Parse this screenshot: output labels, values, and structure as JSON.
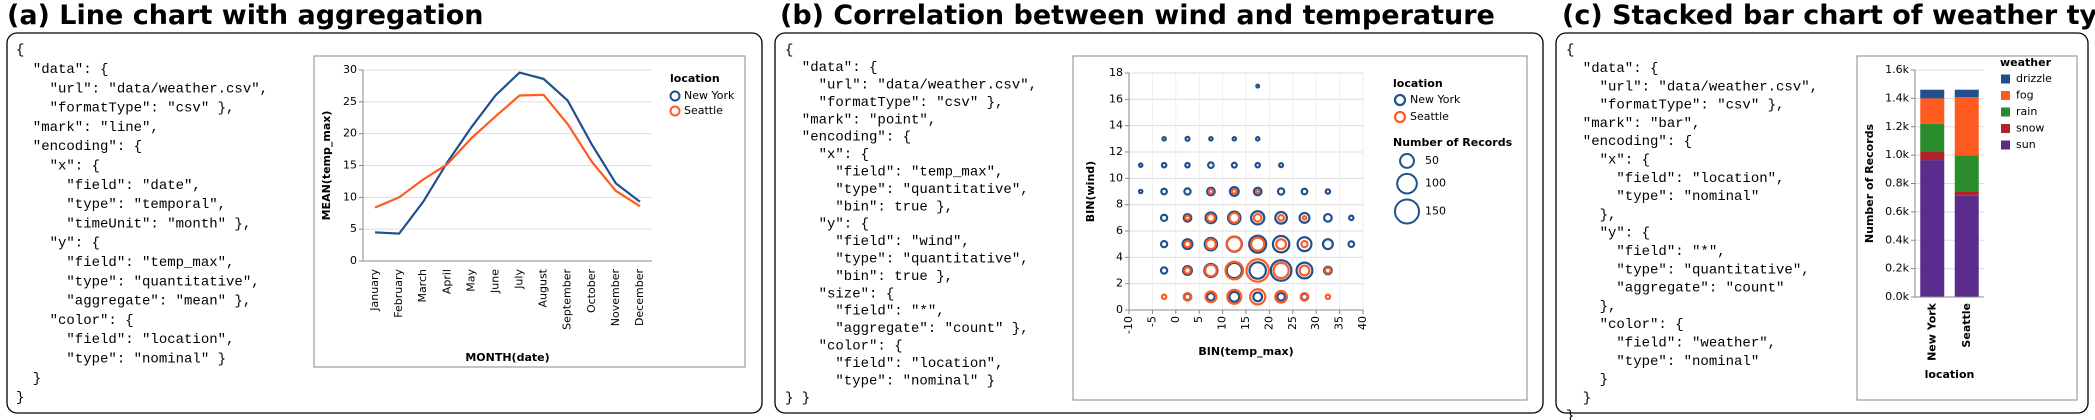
{
  "panels": [
    {
      "title": "(a) Line chart with aggregation",
      "code": [
        "{",
        "  \"data\": {",
        "    \"url\": \"data/weather.csv\",",
        "    \"formatType\": \"csv\" },",
        "  \"mark\": \"line\",",
        "  \"encoding\": {",
        "    \"x\": {",
        "      \"field\": \"date\",",
        "      \"type\": \"temporal\",",
        "      \"timeUnit\": \"month\" },",
        "    \"y\": {",
        "      \"field\": \"temp_max\",",
        "      \"type\": \"quantitative\",",
        "      \"aggregate\": \"mean\" },",
        "    \"color\": {",
        "      \"field\": \"location\",",
        "      \"type\": \"nominal\" }",
        "  }",
        "}"
      ]
    },
    {
      "title": "(b) Correlation between wind and temperature",
      "code": [
        "{",
        "  \"data\": {",
        "    \"url\": \"data/weather.csv\",",
        "    \"formatType\": \"csv\" },",
        "  \"mark\": \"point\",",
        "  \"encoding\": {",
        "    \"x\": {",
        "      \"field\": \"temp_max\",",
        "      \"type\": \"quantitative\",",
        "      \"bin\": true },",
        "    \"y\": {",
        "      \"field\": \"wind\",",
        "      \"type\": \"quantitative\",",
        "      \"bin\": true },",
        "    \"size\": {",
        "      \"field\": \"*\",",
        "      \"aggregate\": \"count\" },",
        "    \"color\": {",
        "      \"field\": \"location\",",
        "      \"type\": \"nominal\" }",
        "} }"
      ]
    },
    {
      "title": "(c) Stacked bar chart of weather types",
      "code": [
        "{",
        "  \"data\": {",
        "    \"url\": \"data/weather.csv\",",
        "    \"formatType\": \"csv\" },",
        "  \"mark\": \"bar\",",
        "  \"encoding\": {",
        "    \"x\": {",
        "      \"field\": \"location\",",
        "      \"type\": \"nominal\"",
        "    },",
        "    \"y\": {",
        "      \"field\": \"*\",",
        "      \"type\": \"quantitative\",",
        "      \"aggregate\": \"count\"",
        "    },",
        "    \"color\": {",
        "      \"field\": \"weather\",",
        "      \"type\": \"nominal\"",
        "    }",
        "  }",
        "}"
      ]
    }
  ],
  "chart_data": [
    {
      "type": "line",
      "x_label": "MONTH(date)",
      "y_label": "MEAN(temp_max)",
      "categories": [
        "January",
        "February",
        "March",
        "April",
        "May",
        "June",
        "July",
        "August",
        "September",
        "October",
        "November",
        "December"
      ],
      "ylim": [
        0,
        30
      ],
      "yticks": [
        0,
        5,
        10,
        15,
        20,
        25,
        30
      ],
      "grid": true,
      "legend_title": "location",
      "series": [
        {
          "name": "New York",
          "color": "#21508f",
          "values": [
            4.5,
            4.3,
            9.3,
            15.5,
            21,
            26,
            29.6,
            28.6,
            25.2,
            18.3,
            12.2,
            9.3
          ]
        },
        {
          "name": "Seattle",
          "color": "#ff5a1f",
          "values": [
            8.4,
            10,
            12.8,
            15.2,
            19.3,
            22.7,
            26,
            26.1,
            21.5,
            15.6,
            11,
            8.6
          ]
        }
      ]
    },
    {
      "type": "scatter",
      "x_label": "BIN(temp_max)",
      "y_label": "BIN(wind)",
      "xlim": [
        -10,
        40
      ],
      "xticks": [
        -10,
        -5,
        0,
        5,
        10,
        15,
        20,
        25,
        30,
        35,
        40
      ],
      "ylim": [
        0,
        18
      ],
      "yticks": [
        0,
        2,
        4,
        6,
        8,
        10,
        12,
        14,
        16,
        18
      ],
      "grid": true,
      "legend_title": "location",
      "size_legend_title": "Number of Records",
      "size_legend": [
        50,
        100,
        150
      ],
      "series": [
        {
          "name": "New York",
          "color": "#21508f",
          "x": [
            2.5,
            7.5,
            12.5,
            17.5,
            22.5,
            27.5,
            -2.5,
            2.5,
            7.5,
            12.5,
            17.5,
            22.5,
            27.5,
            32.5,
            -2.5,
            2.5,
            7.5,
            12.5,
            17.5,
            22.5,
            27.5,
            32.5,
            37.5,
            -2.5,
            2.5,
            7.5,
            12.5,
            17.5,
            22.5,
            27.5,
            32.5,
            37.5,
            -7.5,
            -2.5,
            2.5,
            7.5,
            12.5,
            17.5,
            22.5,
            27.5,
            32.5,
            -7.5,
            -2.5,
            2.5,
            7.5,
            12.5,
            17.5,
            22.5,
            -2.5,
            2.5,
            7.5,
            12.5,
            17.5,
            17.5
          ],
          "y": [
            1,
            1,
            1,
            1,
            1,
            1,
            3,
            3,
            3,
            3,
            3,
            3,
            3,
            3,
            5,
            5,
            5,
            5,
            5,
            5,
            5,
            5,
            5,
            7,
            7,
            7,
            7,
            7,
            7,
            7,
            7,
            7,
            9,
            9,
            9,
            9,
            9,
            9,
            9,
            9,
            9,
            11,
            11,
            11,
            11,
            11,
            11,
            11,
            13,
            13,
            13,
            13,
            13,
            17
          ],
          "size": [
            10,
            15,
            25,
            20,
            15,
            10,
            10,
            20,
            45,
            60,
            70,
            110,
            65,
            15,
            10,
            25,
            40,
            60,
            75,
            70,
            50,
            25,
            8,
            10,
            15,
            30,
            40,
            45,
            35,
            25,
            15,
            5,
            3,
            8,
            10,
            15,
            20,
            15,
            10,
            8,
            5,
            3,
            5,
            5,
            8,
            6,
            5,
            4,
            3,
            4,
            3,
            3,
            3,
            2
          ]
        },
        {
          "name": "Seattle",
          "color": "#ff5a1f",
          "x": [
            -2.5,
            2.5,
            7.5,
            12.5,
            17.5,
            22.5,
            27.5,
            32.5,
            2.5,
            7.5,
            12.5,
            17.5,
            22.5,
            27.5,
            32.5,
            2.5,
            7.5,
            12.5,
            17.5,
            22.5,
            27.5,
            2.5,
            7.5,
            12.5,
            17.5,
            22.5,
            27.5,
            7.5,
            12.5,
            17.5
          ],
          "y": [
            1,
            1,
            1,
            1,
            1,
            1,
            1,
            1,
            3,
            3,
            3,
            3,
            3,
            3,
            3,
            5,
            5,
            5,
            5,
            5,
            5,
            7,
            7,
            7,
            7,
            7,
            7,
            9,
            9,
            9
          ],
          "size": [
            5,
            15,
            30,
            50,
            60,
            35,
            15,
            5,
            10,
            35,
            80,
            130,
            60,
            25,
            8,
            10,
            25,
            55,
            45,
            25,
            10,
            5,
            15,
            25,
            15,
            8,
            3,
            5,
            5,
            3
          ]
        }
      ]
    },
    {
      "type": "bar",
      "stacked": true,
      "x_label": "location",
      "y_label": "Number of Records",
      "categories": [
        "New York",
        "Seattle"
      ],
      "ylim": [
        0,
        1600
      ],
      "yticks": [
        {
          "value": 0,
          "label": "0.0k"
        },
        {
          "value": 200,
          "label": "0.2k"
        },
        {
          "value": 400,
          "label": "0.4k"
        },
        {
          "value": 600,
          "label": "0.6k"
        },
        {
          "value": 800,
          "label": "0.8k"
        },
        {
          "value": 1000,
          "label": "1.0k"
        },
        {
          "value": 1200,
          "label": "1.2k"
        },
        {
          "value": 1400,
          "label": "1.4k"
        },
        {
          "value": 1600,
          "label": "1.6k"
        }
      ],
      "grid": true,
      "legend_title": "weather",
      "series": [
        {
          "name": "drizzle",
          "color": "#21508f",
          "values": [
            61,
            53
          ]
        },
        {
          "name": "fog",
          "color": "#ff5a1f",
          "values": [
            180,
            409
          ]
        },
        {
          "name": "rain",
          "color": "#2a8c2a",
          "values": [
            195,
            259
          ]
        },
        {
          "name": "snow",
          "color": "#b0232a",
          "values": [
            60,
            26
          ]
        },
        {
          "name": "sun",
          "color": "#5a2d8c",
          "values": [
            965,
            714
          ]
        }
      ]
    }
  ]
}
